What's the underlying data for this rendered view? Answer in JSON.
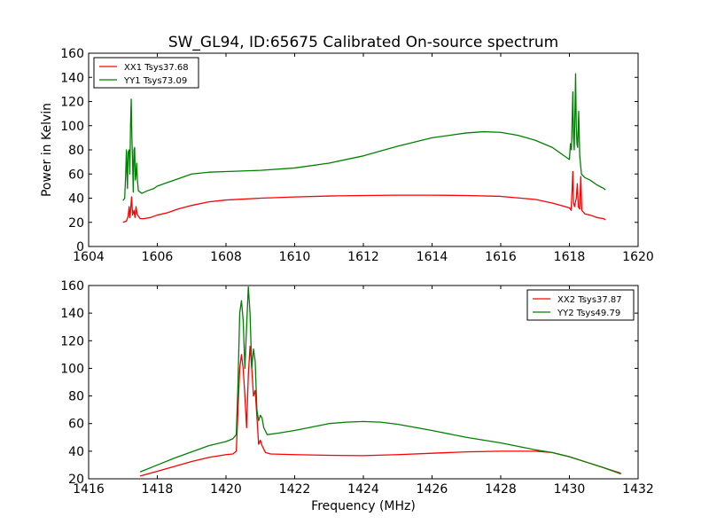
{
  "figure": {
    "title": "SW_GL94, ID:65675 Calibrated On-source spectrum"
  },
  "colors": {
    "xx": "#ff0000",
    "yy": "#008000"
  },
  "chart_data": [
    {
      "type": "line",
      "title": "SW_GL94, ID:65675 Calibrated On-source spectrum",
      "xlabel": "",
      "ylabel": "Power in Kelvin",
      "xlim": [
        1604,
        1620
      ],
      "ylim": [
        0,
        160
      ],
      "xticks": [
        "1604",
        "1606",
        "1608",
        "1610",
        "1612",
        "1614",
        "1616",
        "1618",
        "1620"
      ],
      "yticks": [
        "0",
        "20",
        "40",
        "60",
        "80",
        "100",
        "120",
        "140",
        "160"
      ],
      "grid": false,
      "legend_position": "upper-left",
      "series": [
        {
          "name": "XX1 Tsys37.68",
          "color": "#ff0000",
          "points": [
            [
              1605.0,
              20
            ],
            [
              1605.1,
              21
            ],
            [
              1605.15,
              25
            ],
            [
              1605.18,
              33
            ],
            [
              1605.2,
              24
            ],
            [
              1605.22,
              29
            ],
            [
              1605.25,
              41
            ],
            [
              1605.28,
              26
            ],
            [
              1605.32,
              30
            ],
            [
              1605.35,
              24
            ],
            [
              1605.38,
              33
            ],
            [
              1605.41,
              27
            ],
            [
              1605.45,
              25
            ],
            [
              1605.5,
              23
            ],
            [
              1605.6,
              23
            ],
            [
              1605.8,
              24
            ],
            [
              1606.0,
              26
            ],
            [
              1606.3,
              28
            ],
            [
              1606.6,
              31
            ],
            [
              1607.0,
              34
            ],
            [
              1607.5,
              37
            ],
            [
              1608.0,
              38.5
            ],
            [
              1609.0,
              40
            ],
            [
              1610.0,
              41
            ],
            [
              1611.0,
              41.8
            ],
            [
              1612.0,
              42.2
            ],
            [
              1613.0,
              42.5
            ],
            [
              1614.0,
              42.5
            ],
            [
              1615.0,
              42.2
            ],
            [
              1616.0,
              41.5
            ],
            [
              1617.0,
              39
            ],
            [
              1617.5,
              36
            ],
            [
              1618.0,
              32
            ],
            [
              1618.05,
              30
            ],
            [
              1618.08,
              48
            ],
            [
              1618.1,
              62
            ],
            [
              1618.12,
              36
            ],
            [
              1618.15,
              33
            ],
            [
              1618.2,
              40
            ],
            [
              1618.23,
              52
            ],
            [
              1618.26,
              33
            ],
            [
              1618.3,
              31
            ],
            [
              1618.33,
              58
            ],
            [
              1618.36,
              30
            ],
            [
              1618.45,
              27
            ],
            [
              1618.6,
              26
            ],
            [
              1618.8,
              24
            ],
            [
              1619.0,
              23
            ],
            [
              1619.05,
              22
            ]
          ]
        },
        {
          "name": "YY1 Tsys73.09",
          "color": "#008000",
          "points": [
            [
              1605.0,
              38
            ],
            [
              1605.05,
              40
            ],
            [
              1605.08,
              60
            ],
            [
              1605.1,
              80
            ],
            [
              1605.13,
              48
            ],
            [
              1605.15,
              78
            ],
            [
              1605.18,
              80
            ],
            [
              1605.2,
              60
            ],
            [
              1605.22,
              100
            ],
            [
              1605.24,
              122
            ],
            [
              1605.26,
              90
            ],
            [
              1605.28,
              70
            ],
            [
              1605.3,
              45
            ],
            [
              1605.32,
              80
            ],
            [
              1605.34,
              82
            ],
            [
              1605.36,
              55
            ],
            [
              1605.38,
              60
            ],
            [
              1605.4,
              69
            ],
            [
              1605.42,
              55
            ],
            [
              1605.45,
              46
            ],
            [
              1605.55,
              44
            ],
            [
              1605.7,
              46
            ],
            [
              1605.9,
              48
            ],
            [
              1606.0,
              50
            ],
            [
              1606.3,
              53
            ],
            [
              1606.6,
              56
            ],
            [
              1607.0,
              60
            ],
            [
              1607.5,
              61.5
            ],
            [
              1608.0,
              62
            ],
            [
              1609.0,
              63
            ],
            [
              1610.0,
              65
            ],
            [
              1611.0,
              69
            ],
            [
              1612.0,
              75
            ],
            [
              1613.0,
              83
            ],
            [
              1614.0,
              90
            ],
            [
              1615.0,
              94
            ],
            [
              1615.5,
              95
            ],
            [
              1616.0,
              94.5
            ],
            [
              1616.5,
              92
            ],
            [
              1617.0,
              88
            ],
            [
              1617.5,
              82
            ],
            [
              1618.0,
              72
            ],
            [
              1618.03,
              85
            ],
            [
              1618.06,
              80
            ],
            [
              1618.08,
              105
            ],
            [
              1618.1,
              128
            ],
            [
              1618.12,
              90
            ],
            [
              1618.14,
              80
            ],
            [
              1618.16,
              110
            ],
            [
              1618.18,
              143
            ],
            [
              1618.2,
              100
            ],
            [
              1618.22,
              85
            ],
            [
              1618.24,
              82
            ],
            [
              1618.27,
              112
            ],
            [
              1618.3,
              75
            ],
            [
              1618.35,
              60
            ],
            [
              1618.45,
              57
            ],
            [
              1618.6,
              55
            ],
            [
              1618.8,
              51
            ],
            [
              1619.0,
              48
            ],
            [
              1619.05,
              47
            ]
          ]
        }
      ]
    },
    {
      "type": "line",
      "title": "",
      "xlabel": "Frequency (MHz)",
      "ylabel": "",
      "xlim": [
        1416,
        1432
      ],
      "ylim": [
        20,
        160
      ],
      "xticks": [
        "1416",
        "1418",
        "1420",
        "1422",
        "1424",
        "1426",
        "1428",
        "1430",
        "1432"
      ],
      "yticks": [
        "20",
        "40",
        "60",
        "80",
        "100",
        "120",
        "140",
        "160"
      ],
      "grid": false,
      "legend_position": "upper-right",
      "series": [
        {
          "name": "XX2 Tsys37.87",
          "color": "#ff0000",
          "points": [
            [
              1417.5,
              22
            ],
            [
              1418.0,
              25.5
            ],
            [
              1418.5,
              29
            ],
            [
              1419.0,
              32.5
            ],
            [
              1419.5,
              35.5
            ],
            [
              1420.0,
              37.5
            ],
            [
              1420.2,
              38
            ],
            [
              1420.3,
              40
            ],
            [
              1420.35,
              70
            ],
            [
              1420.4,
              100
            ],
            [
              1420.45,
              110
            ],
            [
              1420.5,
              100
            ],
            [
              1420.55,
              80
            ],
            [
              1420.6,
              57
            ],
            [
              1420.65,
              95
            ],
            [
              1420.7,
              116
            ],
            [
              1420.75,
              100
            ],
            [
              1420.8,
              80
            ],
            [
              1420.85,
              84
            ],
            [
              1420.9,
              65
            ],
            [
              1420.95,
              45
            ],
            [
              1421.0,
              48
            ],
            [
              1421.05,
              44
            ],
            [
              1421.15,
              39
            ],
            [
              1421.3,
              38
            ],
            [
              1422.0,
              37.5
            ],
            [
              1423.0,
              37
            ],
            [
              1424.0,
              36.8
            ],
            [
              1425.0,
              37.5
            ],
            [
              1426.0,
              38.5
            ],
            [
              1427.0,
              39.5
            ],
            [
              1428.0,
              40
            ],
            [
              1429.0,
              40
            ],
            [
              1429.5,
              39
            ],
            [
              1430.0,
              36
            ],
            [
              1430.5,
              32
            ],
            [
              1431.0,
              28
            ],
            [
              1431.5,
              24
            ]
          ]
        },
        {
          "name": "YY2 Tsys49.79",
          "color": "#008000",
          "points": [
            [
              1417.5,
              25
            ],
            [
              1418.0,
              30
            ],
            [
              1418.5,
              35
            ],
            [
              1419.0,
              39.5
            ],
            [
              1419.5,
              44
            ],
            [
              1420.0,
              47
            ],
            [
              1420.2,
              49
            ],
            [
              1420.3,
              52
            ],
            [
              1420.35,
              90
            ],
            [
              1420.4,
              140
            ],
            [
              1420.45,
              149
            ],
            [
              1420.5,
              135
            ],
            [
              1420.55,
              100
            ],
            [
              1420.6,
              130
            ],
            [
              1420.65,
              159
            ],
            [
              1420.7,
              140
            ],
            [
              1420.75,
              100
            ],
            [
              1420.8,
              114
            ],
            [
              1420.85,
              105
            ],
            [
              1420.9,
              70
            ],
            [
              1420.95,
              62
            ],
            [
              1421.0,
              66
            ],
            [
              1421.05,
              64
            ],
            [
              1421.1,
              57
            ],
            [
              1421.2,
              52
            ],
            [
              1421.5,
              53
            ],
            [
              1422.0,
              55
            ],
            [
              1422.5,
              57.5
            ],
            [
              1423.0,
              60
            ],
            [
              1423.5,
              61
            ],
            [
              1424.0,
              61.5
            ],
            [
              1424.5,
              61
            ],
            [
              1425.0,
              59.5
            ],
            [
              1426.0,
              55
            ],
            [
              1427.0,
              50
            ],
            [
              1428.0,
              46
            ],
            [
              1429.0,
              41
            ],
            [
              1429.5,
              39
            ],
            [
              1430.0,
              36
            ],
            [
              1430.5,
              32
            ],
            [
              1431.0,
              28
            ],
            [
              1431.5,
              23.5
            ]
          ]
        }
      ]
    }
  ]
}
